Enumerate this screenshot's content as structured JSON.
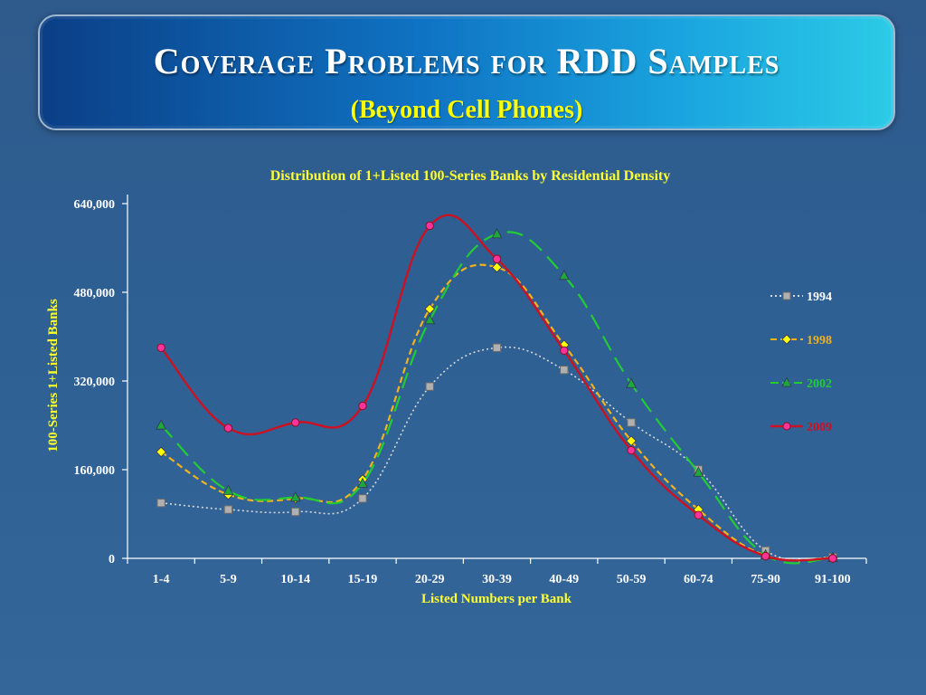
{
  "slide": {
    "title": "Coverage Problems for RDD Samples",
    "subtitle": "(Beyond Cell Phones)"
  },
  "colors": {
    "background": "#2f5a8c",
    "title_text": "#ffffff",
    "subtitle_text": "#ffff00",
    "chart_title": "#ffff33",
    "axis_text": "#ffffff"
  },
  "chart_data": {
    "type": "line",
    "title": "Distribution of 1+Listed 100-Series Banks by Residential Density",
    "xlabel": "Listed Numbers per Bank",
    "ylabel": "100-Series 1+Listed Banks",
    "categories": [
      "1-4",
      "5-9",
      "10-14",
      "15-19",
      "20-29",
      "30-39",
      "40-49",
      "50-59",
      "60-74",
      "75-90",
      "91-100"
    ],
    "ylim": [
      0,
      640000
    ],
    "yticks": [
      0,
      160000,
      320000,
      480000,
      640000
    ],
    "ytick_labels": [
      "0",
      "160,000",
      "320,000",
      "480,000",
      "640,000"
    ],
    "grid": false,
    "legend_position": "right",
    "series": [
      {
        "name": "1994",
        "color": "#d8d8d8",
        "label_color": "#ffffff",
        "dash": "2,3",
        "marker": "square",
        "marker_color": "#b0b0b0",
        "values": [
          100000,
          88000,
          84000,
          108000,
          310000,
          380000,
          340000,
          245000,
          160000,
          14000,
          2000
        ]
      },
      {
        "name": "1998",
        "color": "#f2b21c",
        "label_color": "#f2b21c",
        "dash": "7,4",
        "marker": "diamond",
        "marker_color": "#ffff00",
        "values": [
          192000,
          115000,
          108000,
          142000,
          450000,
          525000,
          385000,
          212000,
          88000,
          5000,
          1000
        ]
      },
      {
        "name": "2002",
        "color": "#22cc33",
        "label_color": "#22cc33",
        "dash": "18,9",
        "marker": "triangle",
        "marker_color": "#1fa83a",
        "values": [
          240000,
          122000,
          110000,
          135000,
          430000,
          585000,
          510000,
          315000,
          155000,
          6000,
          1000
        ]
      },
      {
        "name": "2009",
        "color": "#cc1122",
        "label_color": "#cc1122",
        "dash": "",
        "marker": "circle",
        "marker_color": "#ff3399",
        "values": [
          380000,
          235000,
          245000,
          275000,
          600000,
          540000,
          375000,
          195000,
          78000,
          4000,
          0
        ]
      }
    ]
  }
}
